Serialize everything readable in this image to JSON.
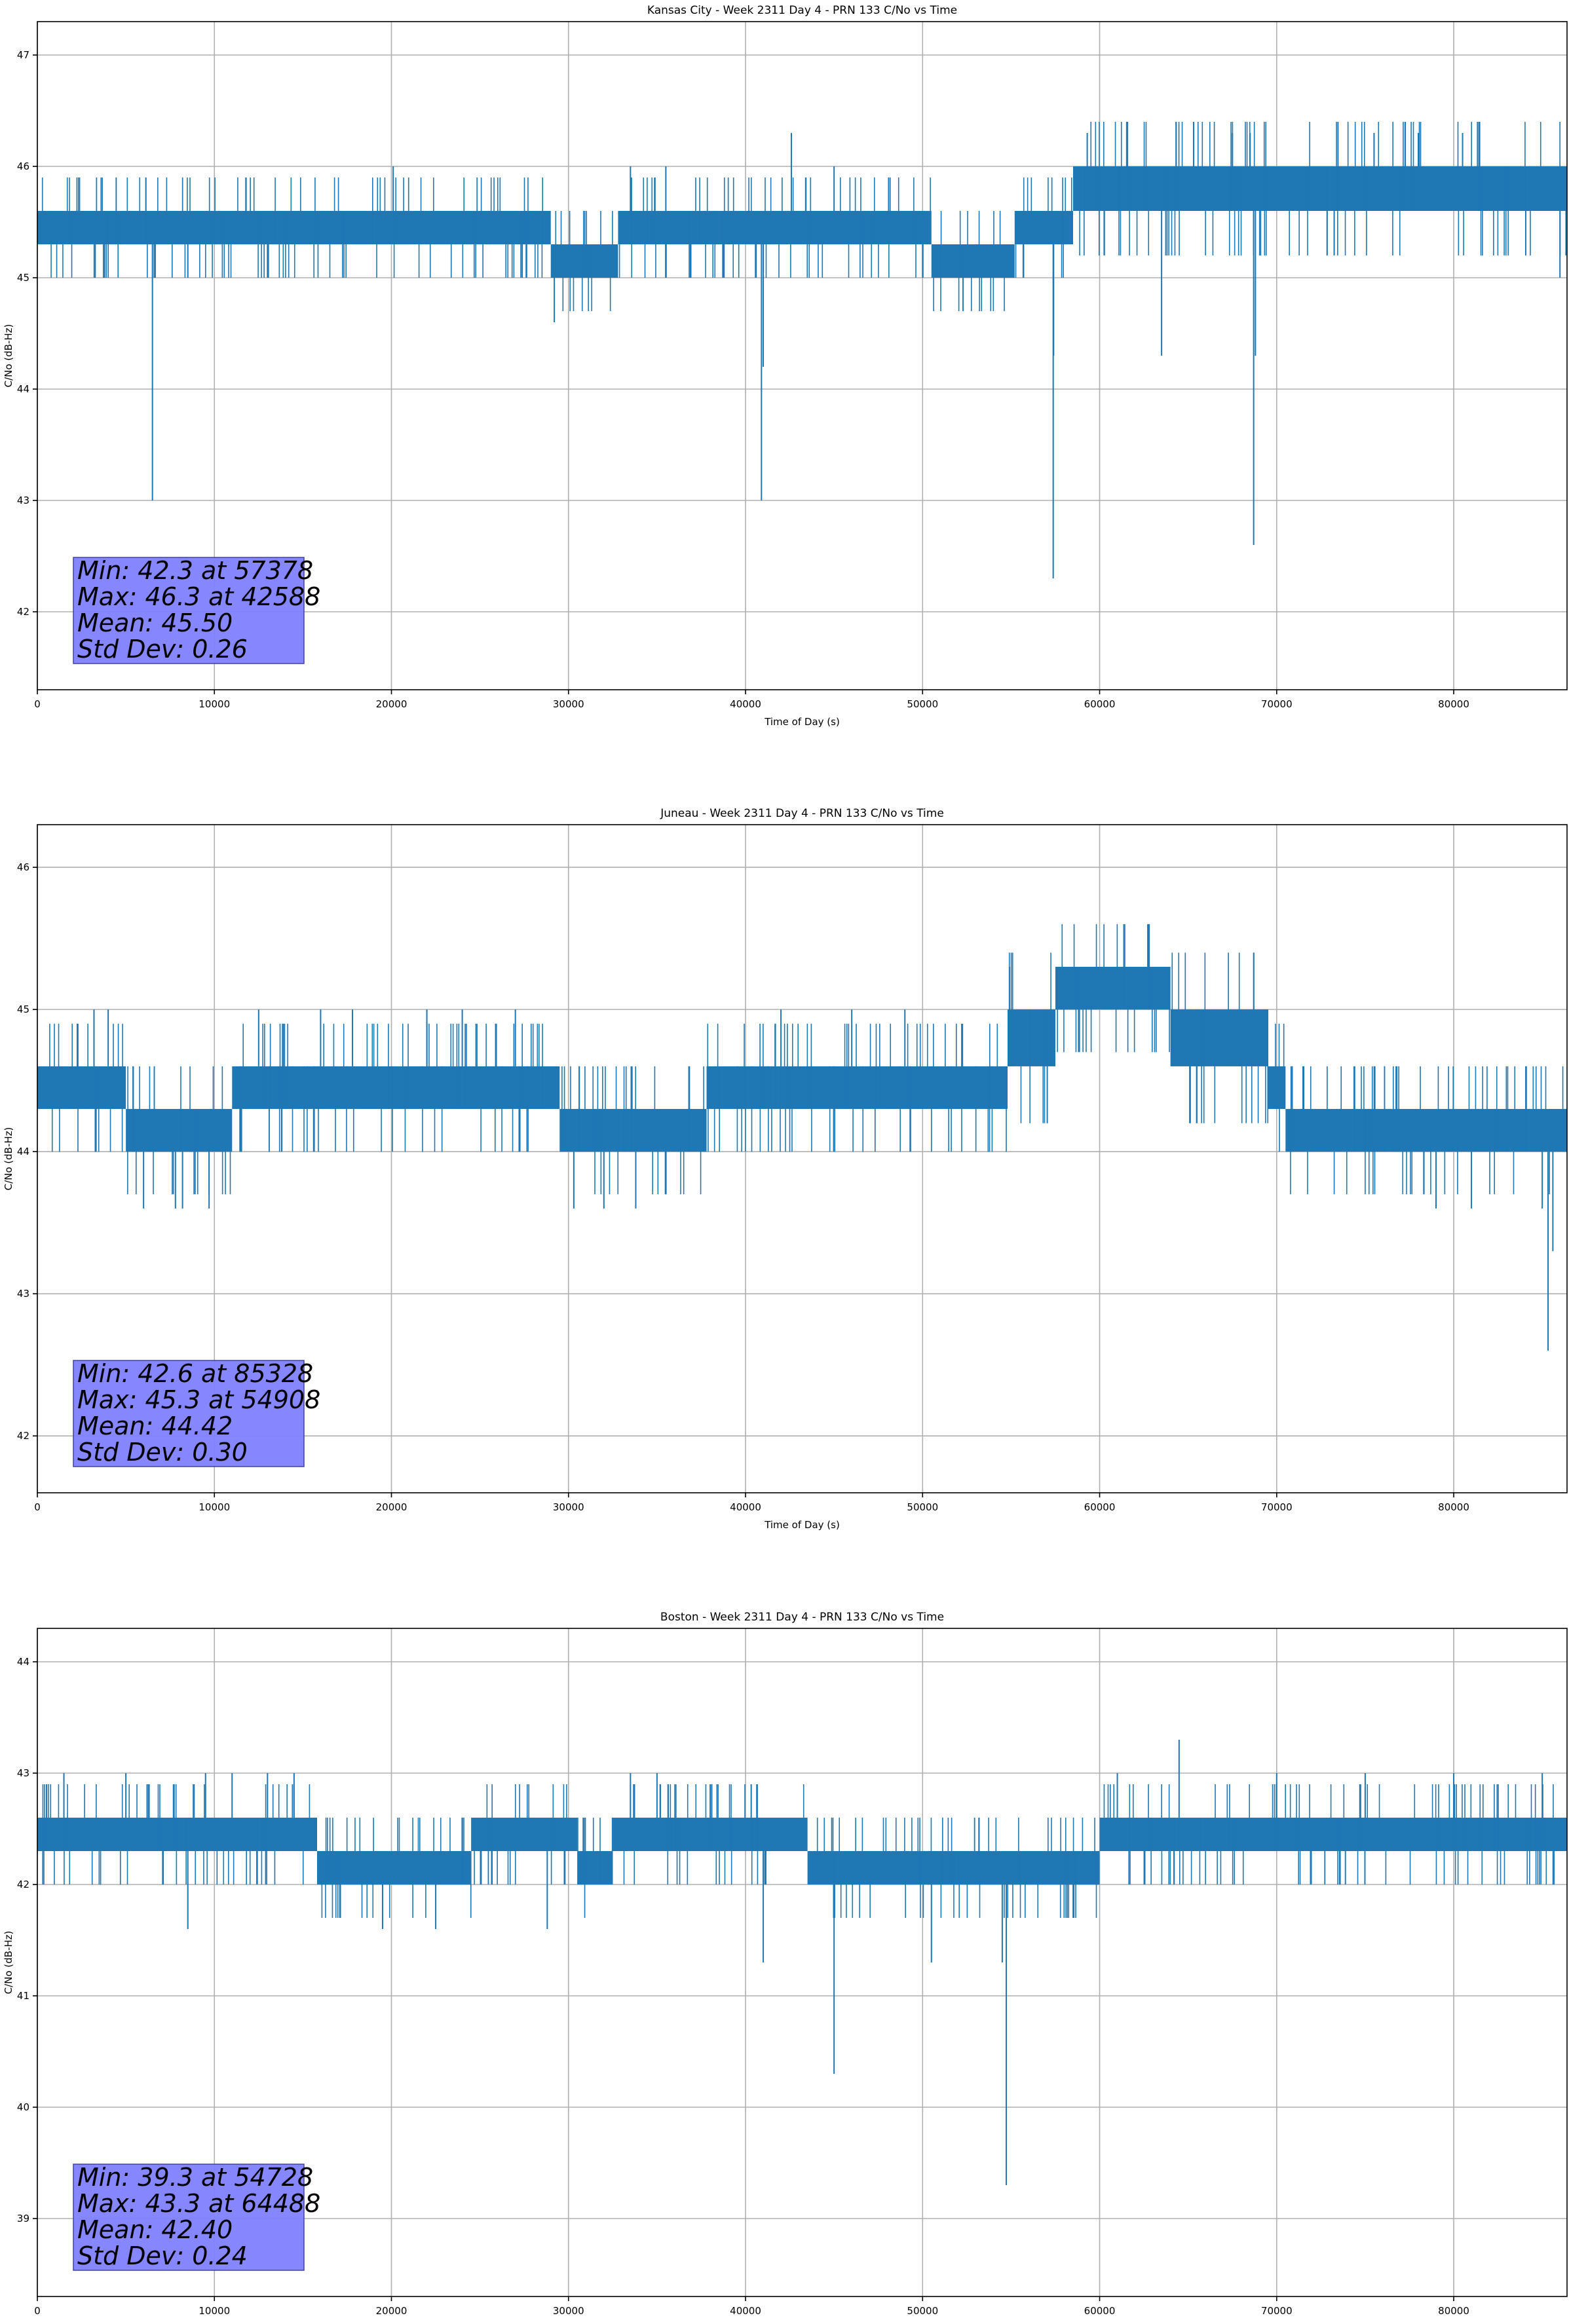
{
  "chart_data": [
    {
      "type": "line",
      "title": "Kansas City - Week 2311 Day 4 - PRN 133 C/No vs Time",
      "xlabel": "Time of Day (s)",
      "ylabel": "C/No (dB-Hz)",
      "xlim": [
        0,
        86400
      ],
      "ylim": [
        41.3,
        47.3
      ],
      "xticks": [
        0,
        10000,
        20000,
        30000,
        40000,
        50000,
        60000,
        70000,
        80000
      ],
      "yticks": [
        42,
        43,
        44,
        45,
        46,
        47
      ],
      "grid": true,
      "color": "#1f77b4",
      "stats": [
        "Min: 42.3 at 57378",
        "Max: 46.3 at 42588",
        "Mean: 45.50",
        "Std Dev: 0.26"
      ],
      "stats_color": "#8080ff",
      "bands": [
        {
          "x": [
            0,
            20000
          ],
          "values": [
            45.3,
            45.6
          ]
        },
        {
          "x": [
            20000,
            29000
          ],
          "values": [
            45.3,
            45.6
          ]
        },
        {
          "x": [
            29000,
            32800
          ],
          "values": [
            45.0,
            45.3
          ]
        },
        {
          "x": [
            32800,
            38500
          ],
          "values": [
            45.3,
            45.6
          ]
        },
        {
          "x": [
            38500,
            50500
          ],
          "values": [
            45.3,
            45.6
          ]
        },
        {
          "x": [
            50500,
            55200
          ],
          "values": [
            45.0,
            45.3
          ]
        },
        {
          "x": [
            55200,
            58500
          ],
          "values": [
            45.3,
            45.6
          ]
        },
        {
          "x": [
            58500,
            86400
          ],
          "values": [
            45.6,
            46.0
          ]
        }
      ],
      "spikes": [
        {
          "x": 3800,
          "y": 45.0
        },
        {
          "x": 6500,
          "y": 43.0
        },
        {
          "x": 6600,
          "y": 45.0
        },
        {
          "x": 8500,
          "y": 45.0
        },
        {
          "x": 13000,
          "y": 45.0
        },
        {
          "x": 20100,
          "y": 46.0
        },
        {
          "x": 29200,
          "y": 44.6
        },
        {
          "x": 33500,
          "y": 46.0
        },
        {
          "x": 35500,
          "y": 46.0
        },
        {
          "x": 40900,
          "y": 43.0
        },
        {
          "x": 41000,
          "y": 44.2
        },
        {
          "x": 42588,
          "y": 46.3
        },
        {
          "x": 45000,
          "y": 46.0
        },
        {
          "x": 50000,
          "y": 45.0
        },
        {
          "x": 57378,
          "y": 42.3
        },
        {
          "x": 57400,
          "y": 44.3
        },
        {
          "x": 59300,
          "y": 46.3
        },
        {
          "x": 63500,
          "y": 44.3
        },
        {
          "x": 67500,
          "y": 46.3
        },
        {
          "x": 68500,
          "y": 46.3
        },
        {
          "x": 68700,
          "y": 42.6
        },
        {
          "x": 68800,
          "y": 44.3
        },
        {
          "x": 75500,
          "y": 46.3
        },
        {
          "x": 78000,
          "y": 46.3
        },
        {
          "x": 80500,
          "y": 46.3
        },
        {
          "x": 86000,
          "y": 45.0
        }
      ]
    },
    {
      "type": "line",
      "title": "Juneau - Week 2311 Day 4 - PRN 133 C/No vs Time",
      "xlabel": "Time of Day (s)",
      "ylabel": "C/No (dB-Hz)",
      "xlim": [
        0,
        86400
      ],
      "ylim": [
        41.6,
        46.3
      ],
      "xticks": [
        0,
        10000,
        20000,
        30000,
        40000,
        50000,
        60000,
        70000,
        80000
      ],
      "yticks": [
        42,
        43,
        44,
        45,
        46
      ],
      "grid": true,
      "color": "#1f77b4",
      "stats": [
        "Min: 42.6 at 85328",
        "Max: 45.3 at 54908",
        "Mean: 44.42",
        "Std Dev: 0.30"
      ],
      "stats_color": "#8080ff",
      "bands": [
        {
          "x": [
            0,
            5000
          ],
          "values": [
            44.3,
            44.6
          ]
        },
        {
          "x": [
            5000,
            11000
          ],
          "values": [
            44.0,
            44.3
          ]
        },
        {
          "x": [
            11000,
            29500
          ],
          "values": [
            44.3,
            44.6
          ]
        },
        {
          "x": [
            29500,
            37800
          ],
          "values": [
            44.0,
            44.3
          ]
        },
        {
          "x": [
            37800,
            54800
          ],
          "values": [
            44.3,
            44.6
          ]
        },
        {
          "x": [
            54800,
            57500
          ],
          "values": [
            44.6,
            45.0
          ]
        },
        {
          "x": [
            57500,
            64000
          ],
          "values": [
            45.0,
            45.3
          ]
        },
        {
          "x": [
            64000,
            69500
          ],
          "values": [
            44.6,
            45.0
          ]
        },
        {
          "x": [
            69500,
            70500
          ],
          "values": [
            44.3,
            44.6
          ]
        },
        {
          "x": [
            70500,
            86400
          ],
          "values": [
            44.0,
            44.3
          ]
        }
      ],
      "spikes": [
        {
          "x": 3200,
          "y": 45.0
        },
        {
          "x": 4000,
          "y": 45.0
        },
        {
          "x": 6000,
          "y": 43.6
        },
        {
          "x": 7800,
          "y": 43.6
        },
        {
          "x": 8200,
          "y": 43.6
        },
        {
          "x": 9700,
          "y": 43.6
        },
        {
          "x": 12500,
          "y": 45.0
        },
        {
          "x": 16000,
          "y": 45.0
        },
        {
          "x": 17800,
          "y": 45.0
        },
        {
          "x": 22000,
          "y": 45.0
        },
        {
          "x": 24000,
          "y": 45.0
        },
        {
          "x": 27000,
          "y": 45.0
        },
        {
          "x": 30300,
          "y": 43.6
        },
        {
          "x": 32000,
          "y": 43.6
        },
        {
          "x": 33800,
          "y": 43.6
        },
        {
          "x": 42000,
          "y": 45.0
        },
        {
          "x": 46000,
          "y": 45.0
        },
        {
          "x": 49000,
          "y": 45.0
        },
        {
          "x": 54908,
          "y": 45.3
        },
        {
          "x": 79000,
          "y": 43.6
        },
        {
          "x": 81000,
          "y": 43.6
        },
        {
          "x": 85000,
          "y": 43.6
        },
        {
          "x": 85328,
          "y": 42.6
        },
        {
          "x": 85600,
          "y": 43.3
        }
      ]
    },
    {
      "type": "line",
      "title": "Boston - Week 2311 Day 4 - PRN 133 C/No vs Time",
      "xlabel": "Time of Day (s)",
      "ylabel": "C/No (dB-Hz)",
      "xlim": [
        0,
        86400
      ],
      "ylim": [
        38.3,
        44.3
      ],
      "xticks": [
        0,
        10000,
        20000,
        30000,
        40000,
        50000,
        60000,
        70000,
        80000
      ],
      "yticks": [
        39,
        40,
        41,
        42,
        43,
        44
      ],
      "grid": true,
      "color": "#1f77b4",
      "stats": [
        "Min: 39.3 at 54728",
        "Max: 43.3 at 64488",
        "Mean: 42.40",
        "Std Dev: 0.24"
      ],
      "stats_color": "#8080ff",
      "bands": [
        {
          "x": [
            0,
            15800
          ],
          "values": [
            42.3,
            42.6
          ]
        },
        {
          "x": [
            15800,
            24500
          ],
          "values": [
            42.0,
            42.3
          ]
        },
        {
          "x": [
            24500,
            30500
          ],
          "values": [
            42.3,
            42.6
          ]
        },
        {
          "x": [
            30500,
            32500
          ],
          "values": [
            42.0,
            42.3
          ]
        },
        {
          "x": [
            32500,
            43500
          ],
          "values": [
            42.3,
            42.6
          ]
        },
        {
          "x": [
            43500,
            60000
          ],
          "values": [
            42.0,
            42.3
          ]
        },
        {
          "x": [
            60000,
            86400
          ],
          "values": [
            42.3,
            42.6
          ]
        }
      ],
      "spikes": [
        {
          "x": 1500,
          "y": 43.0
        },
        {
          "x": 5000,
          "y": 43.0
        },
        {
          "x": 8500,
          "y": 41.6
        },
        {
          "x": 9500,
          "y": 43.0
        },
        {
          "x": 11000,
          "y": 43.0
        },
        {
          "x": 13000,
          "y": 43.0
        },
        {
          "x": 14500,
          "y": 43.0
        },
        {
          "x": 19500,
          "y": 41.6
        },
        {
          "x": 22500,
          "y": 41.6
        },
        {
          "x": 28800,
          "y": 41.6
        },
        {
          "x": 33500,
          "y": 43.0
        },
        {
          "x": 35000,
          "y": 43.0
        },
        {
          "x": 41000,
          "y": 41.3
        },
        {
          "x": 45000,
          "y": 40.3
        },
        {
          "x": 50500,
          "y": 41.3
        },
        {
          "x": 54500,
          "y": 41.3
        },
        {
          "x": 54728,
          "y": 39.3
        },
        {
          "x": 61000,
          "y": 43.0
        },
        {
          "x": 64488,
          "y": 43.3
        },
        {
          "x": 70000,
          "y": 43.0
        },
        {
          "x": 75000,
          "y": 43.0
        },
        {
          "x": 80000,
          "y": 43.0
        },
        {
          "x": 85000,
          "y": 43.0
        }
      ]
    }
  ]
}
